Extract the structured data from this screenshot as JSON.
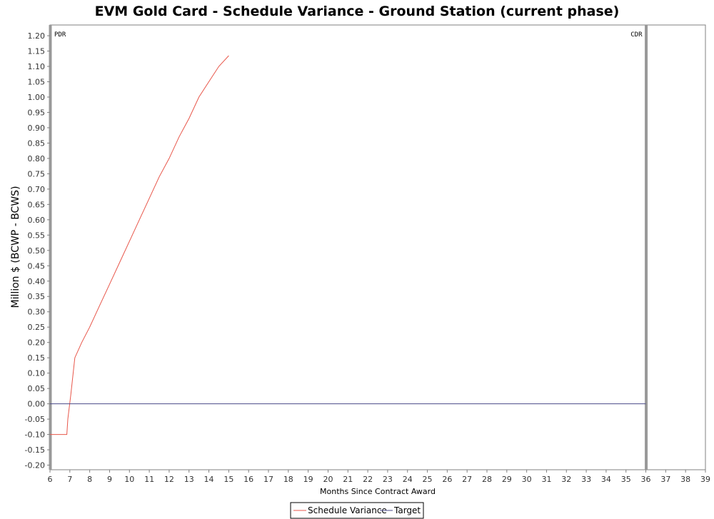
{
  "chart_data": {
    "type": "line",
    "title": "EVM Gold Card - Schedule Variance - Ground Station (current phase)",
    "xlabel": "Months Since Contract Award",
    "ylabel": "Million $ (BCWP - BCWS)",
    "xlim": [
      6,
      39
    ],
    "ylim": [
      -0.215,
      1.235
    ],
    "xticks": [
      6,
      7,
      8,
      9,
      10,
      11,
      12,
      13,
      14,
      15,
      16,
      17,
      18,
      19,
      20,
      21,
      22,
      23,
      24,
      25,
      26,
      27,
      28,
      29,
      30,
      31,
      32,
      33,
      34,
      35,
      36,
      37,
      38,
      39
    ],
    "yticks": [
      -0.2,
      -0.15,
      -0.1,
      -0.05,
      0.0,
      0.05,
      0.1,
      0.15,
      0.2,
      0.25,
      0.3,
      0.35,
      0.4,
      0.45,
      0.5,
      0.55,
      0.6,
      0.65,
      0.7,
      0.75,
      0.8,
      0.85,
      0.9,
      0.95,
      1.0,
      1.05,
      1.1,
      1.15,
      1.2
    ],
    "grid": false,
    "series": [
      {
        "name": "Schedule Variance",
        "color": "#e8574b",
        "x": [
          6.0,
          6.85,
          6.9,
          7.05,
          7.25,
          7.6,
          8.0,
          8.5,
          9.0,
          9.5,
          10.0,
          10.5,
          11.0,
          11.5,
          12.0,
          12.5,
          13.0,
          13.5,
          14.0,
          14.5,
          15.0
        ],
        "y": [
          -0.1,
          -0.1,
          -0.05,
          0.03,
          0.15,
          0.2,
          0.25,
          0.32,
          0.39,
          0.46,
          0.53,
          0.6,
          0.67,
          0.74,
          0.8,
          0.87,
          0.93,
          1.0,
          1.05,
          1.1,
          1.135
        ]
      },
      {
        "name": "Target",
        "color": "#4a4a8a",
        "x": [
          6.0,
          36.0
        ],
        "y": [
          0.0,
          0.0
        ]
      }
    ],
    "markers": [
      {
        "label": "PDR",
        "x": 6.0
      },
      {
        "label": "CDR",
        "x": 36.0
      }
    ],
    "legend": "bottom-center"
  }
}
